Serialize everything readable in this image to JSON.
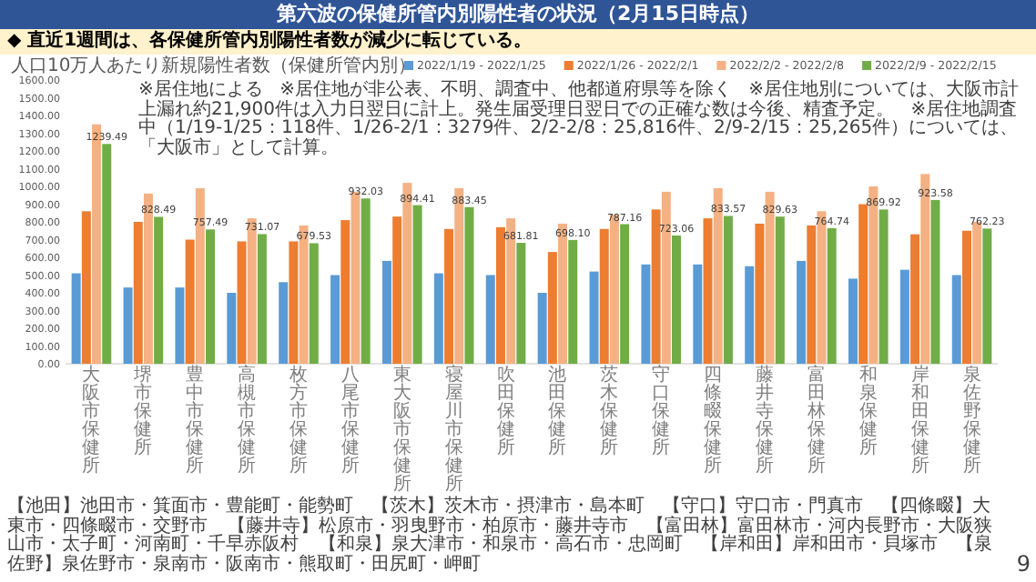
{
  "chart_data": {
    "type": "bar",
    "title": "第六波の保健所管内別陽性者の状況（2月15日時点）",
    "subtitle": "◆ 直近1週間は、各保健所管内別陽性者数が減少に転じている。",
    "annotations": [
      "人口10万人あたり新規陽性者数（保健所管内別）",
      "※居住地による",
      "※居住地が非公表、不明、調査中、他都道府県等を除く",
      "※居住地別については、大阪市計上漏れ約21,900件は入力日翌日に計上。発生届受理日翌日での正確な数は今後、精査予定。",
      "※居住地調査中（1/19-1/25：118件、1/26-2/1：3279件、2/2-2/8：25,816件、2/9-2/15：25,265件）については、「大阪市」として計算。",
      "【池田】池田市・箕面市・豊能町・能勢町　【茨木】茨木市・摂津市・島本町　【守口】守口市・門真市　【四條畷】大東市・四條畷市・交野市",
      "【藤井寺】松原市・羽曳野市・柏原市・藤井寺市　【富田林】富田林市・河内長野市・大阪狭山市・太子町・河南町・千早赤阪村",
      "【和泉】泉大津市・和泉市・高石市・忠岡町　【岸和田】岸和田市・貝塚市　【泉佐野】泉佐野市・泉南市・阪南市・熊取町・田尻町・岬町",
      "9"
    ],
    "categories": [
      "大阪市保健所",
      "堺市保健所",
      "豊中市保健所",
      "高槻市保健所",
      "枚方市保健所",
      "八尾市保健所",
      "東大阪市保健所",
      "寝屋川市保健所",
      "吹田保健所",
      "池田保健所",
      "茨木保健所",
      "守口保健所",
      "四條畷保健所",
      "藤井寺保健所",
      "富田林保健所",
      "和泉保健所",
      "岸和田保健所",
      "泉佐野保健所"
    ],
    "series": [
      {
        "name": "2022/1/19 - 2022/1/25",
        "color": "#5b9bd5",
        "values": [
          510,
          430,
          430,
          400,
          460,
          500,
          580,
          510,
          500,
          400,
          520,
          560,
          560,
          550,
          580,
          480,
          530,
          500
        ]
      },
      {
        "name": "2022/1/26 - 2022/2/1",
        "color": "#ed7d31",
        "values": [
          860,
          800,
          700,
          690,
          690,
          810,
          830,
          760,
          770,
          630,
          760,
          870,
          820,
          790,
          780,
          900,
          730,
          750
        ]
      },
      {
        "name": "2022/2/2 - 2022/2/8",
        "color": "#f4b183",
        "values": [
          1350,
          960,
          990,
          820,
          780,
          970,
          1020,
          990,
          820,
          790,
          840,
          970,
          990,
          970,
          860,
          1000,
          1070,
          800
        ]
      },
      {
        "name": "2022/2/9 - 2022/2/15",
        "color": "#70ad47",
        "values": [
          1239.49,
          828.49,
          757.49,
          731.07,
          679.53,
          932.03,
          894.41,
          883.45,
          681.81,
          698.1,
          787.16,
          723.06,
          833.57,
          829.63,
          764.74,
          869.92,
          923.58,
          762.23
        ],
        "value_labels": [
          "1239.49",
          "828.49",
          "757.49",
          "731.07",
          "679.53",
          "932.03",
          "894.41",
          "883.45",
          "681.81",
          "698.10",
          "787.16",
          "723.06",
          "833.57",
          "829.63",
          "764.74",
          "869.92",
          "923.58",
          "762.23"
        ]
      }
    ],
    "ylim": [
      0,
      1600
    ],
    "yticks": [
      {
        "value": 0,
        "label": "0.00"
      },
      {
        "value": 100,
        "label": "100.00"
      },
      {
        "value": 200,
        "label": "200.00"
      },
      {
        "value": 300,
        "label": "300.00"
      },
      {
        "value": 400,
        "label": "400.00"
      },
      {
        "value": 500,
        "label": "500.00"
      },
      {
        "value": 600,
        "label": "600.00"
      },
      {
        "value": 700,
        "label": "700.00"
      },
      {
        "value": 800,
        "label": "800.00"
      },
      {
        "value": 900,
        "label": "900.00"
      },
      {
        "value": 1000,
        "label": "1000.00"
      },
      {
        "value": 1100,
        "label": "1100.00"
      },
      {
        "value": 1200,
        "label": "1200.00"
      },
      {
        "value": 1300,
        "label": "1300.00"
      },
      {
        "value": 1400,
        "label": "1400.00"
      },
      {
        "value": 1500,
        "label": "1500.00"
      },
      {
        "value": 1600,
        "label": "1600.00"
      }
    ],
    "legend": "top"
  }
}
